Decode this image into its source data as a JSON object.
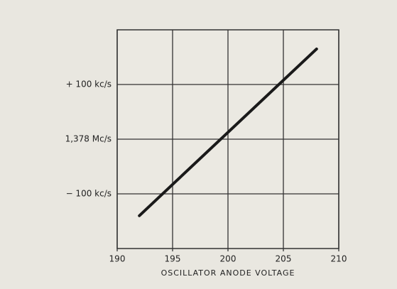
{
  "chart_data": {
    "type": "line",
    "x_label": "OSCILLATOR ANODE VOLTAGE",
    "x": [
      192,
      208
    ],
    "series": [
      {
        "color": "#1a1a1a",
        "values": [
          -140,
          165
        ]
      }
    ],
    "xlim": [
      190,
      210
    ],
    "xticks": [
      190,
      195,
      200,
      205,
      210
    ],
    "ylim": [
      -200,
      200
    ],
    "yticks": [
      {
        "value": -100,
        "label": "− 100 kc/s"
      },
      {
        "value": 0,
        "label": "1,378 Mc/s"
      },
      {
        "value": 100,
        "label": "+ 100 kc/s"
      }
    ],
    "grid": true
  }
}
